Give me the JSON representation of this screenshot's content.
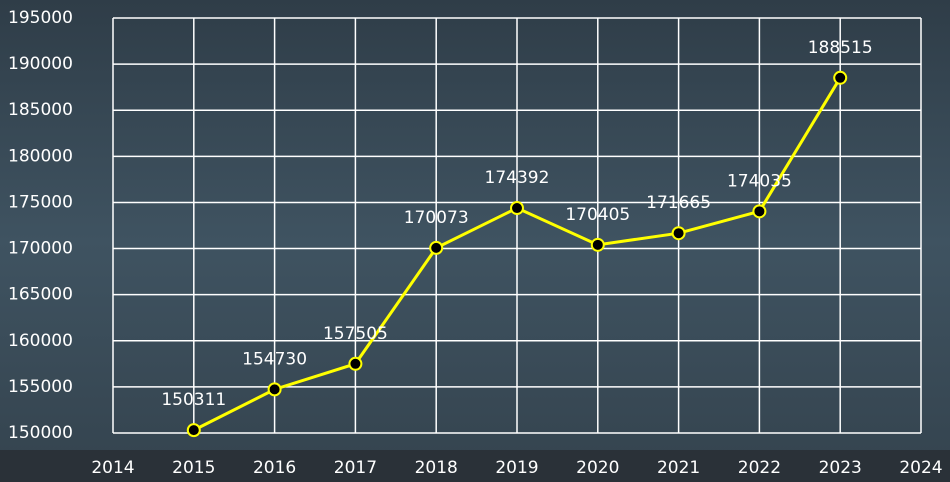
{
  "chart_data": {
    "type": "line",
    "x": [
      2015,
      2016,
      2017,
      2018,
      2019,
      2020,
      2021,
      2022,
      2023
    ],
    "values": [
      150311,
      154730,
      157505,
      170073,
      174392,
      170405,
      171665,
      174035,
      188515
    ],
    "color": "#ffff00",
    "xlim": [
      2014,
      2024
    ],
    "xticks": [
      2014,
      2015,
      2016,
      2017,
      2018,
      2019,
      2020,
      2021,
      2022,
      2023,
      2024
    ],
    "ylim": [
      150000,
      195000
    ],
    "yticks": [
      150000,
      155000,
      160000,
      165000,
      170000,
      175000,
      180000,
      185000,
      190000,
      195000
    ],
    "grid": true
  }
}
